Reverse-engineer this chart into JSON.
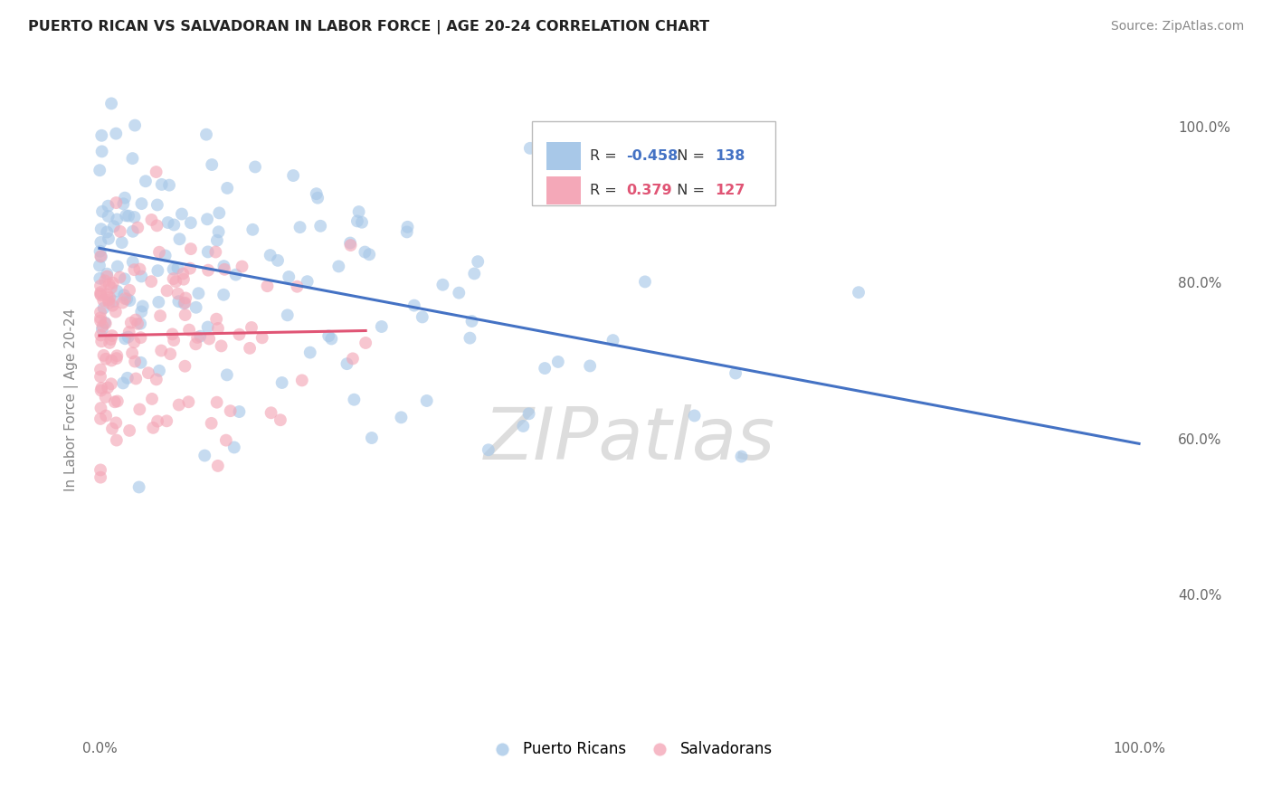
{
  "title": "PUERTO RICAN VS SALVADORAN IN LABOR FORCE | AGE 20-24 CORRELATION CHART",
  "source": "Source: ZipAtlas.com",
  "ylabel": "In Labor Force | Age 20-24",
  "r_blue": -0.458,
  "n_blue": 138,
  "r_pink": 0.379,
  "n_pink": 127,
  "blue_color": "#a8c8e8",
  "pink_color": "#f4a8b8",
  "blue_line_color": "#4472c4",
  "pink_line_color": "#e05575",
  "watermark": "ZIPatlas",
  "legend_blue": "Puerto Ricans",
  "legend_pink": "Salvadorans",
  "xlim": [
    -0.01,
    1.03
  ],
  "ylim": [
    0.22,
    1.08
  ],
  "yticks": [
    0.4,
    0.6,
    0.8,
    1.0
  ],
  "ytick_labels": [
    "40.0%",
    "60.0%",
    "80.0%",
    "100.0%"
  ],
  "xtick_labels": [
    "0.0%",
    "100.0%"
  ],
  "blue_intercept": 0.84,
  "blue_slope": -0.26,
  "pink_intercept": 0.72,
  "pink_slope": 0.22
}
